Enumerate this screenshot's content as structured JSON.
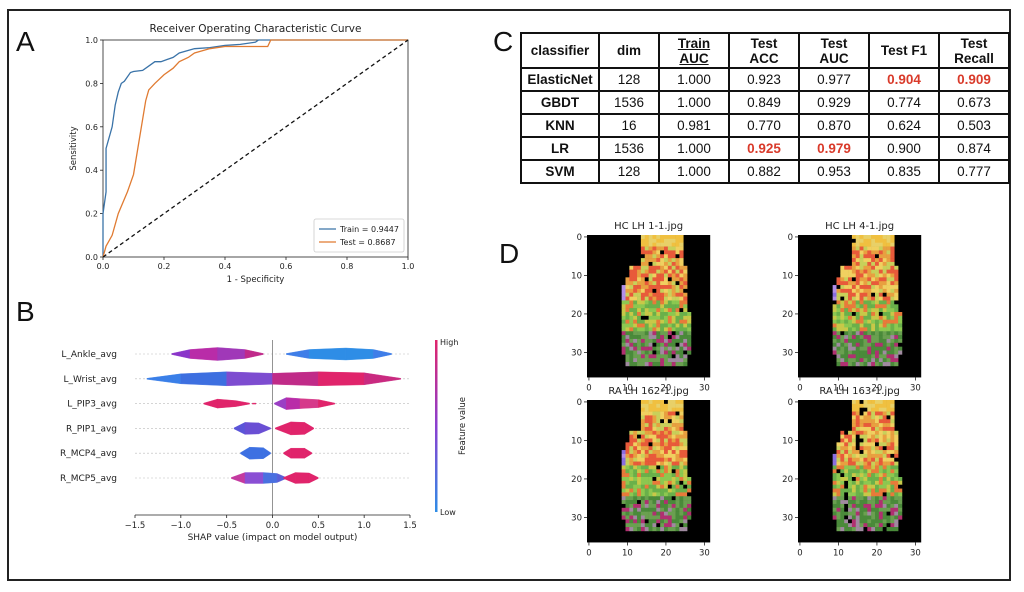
{
  "panel_labels": {
    "a": "A",
    "b": "B",
    "c": "C",
    "d": "D"
  },
  "colors": {
    "train": "#3a73a8",
    "test": "#e07b32",
    "highlight": "#d93a2a",
    "shap_high": "#e0246b",
    "shap_low": "#2e8de6"
  },
  "chart_data": [
    {
      "type": "line",
      "title": "Receiver Operating Characteristic Curve",
      "xlabel": "1 - Specificity",
      "ylabel": "Sensitivity",
      "xlim": [
        0,
        1
      ],
      "ylim": [
        0,
        1
      ],
      "xticks": [
        "0.0",
        "0.2",
        "0.4",
        "0.6",
        "0.8",
        "1.0"
      ],
      "yticks": [
        "0.0",
        "0.2",
        "0.4",
        "0.6",
        "0.8",
        "1.0"
      ],
      "legend_position": "lower-right",
      "series": [
        {
          "name": "Train = 0.9447",
          "color": "#3a73a8",
          "x": [
            0,
            0,
            0.01,
            0.01,
            0.03,
            0.04,
            0.05,
            0.06,
            0.07,
            0.08,
            0.09,
            0.1,
            0.13,
            0.15,
            0.17,
            0.19,
            0.21,
            0.23,
            0.25,
            0.3,
            0.35,
            0.4,
            0.45,
            0.5,
            0.51,
            0.52,
            0.53,
            0.54,
            0.6,
            1.0
          ],
          "y": [
            0,
            0.2,
            0.3,
            0.5,
            0.6,
            0.7,
            0.76,
            0.8,
            0.81,
            0.83,
            0.85,
            0.855,
            0.86,
            0.88,
            0.9,
            0.9,
            0.91,
            0.92,
            0.94,
            0.96,
            0.965,
            0.975,
            0.98,
            0.99,
            1.0,
            1.0,
            1.0,
            1.0,
            1.0,
            1.0
          ]
        },
        {
          "name": "Test = 0.8687",
          "color": "#e07b32",
          "x": [
            0,
            0.01,
            0.03,
            0.05,
            0.08,
            0.1,
            0.12,
            0.14,
            0.15,
            0.17,
            0.2,
            0.23,
            0.25,
            0.28,
            0.3,
            0.35,
            0.4,
            0.45,
            0.5,
            0.54,
            0.55,
            1.0
          ],
          "y": [
            0,
            0.05,
            0.1,
            0.2,
            0.3,
            0.38,
            0.55,
            0.72,
            0.77,
            0.8,
            0.84,
            0.87,
            0.9,
            0.92,
            0.94,
            0.96,
            0.97,
            0.97,
            0.97,
            0.97,
            1.0,
            1.0
          ]
        },
        {
          "name": "",
          "color": "#111111",
          "dashed": true,
          "x": [
            0,
            1
          ],
          "y": [
            0,
            1
          ]
        }
      ]
    },
    {
      "type": "violin",
      "xlabel": "SHAP value (impact on model output)",
      "xlim": [
        -1.5,
        1.5
      ],
      "xticks": [
        "−1.5",
        "−1.0",
        "−0.5",
        "0.0",
        "0.5",
        "1.0",
        "1.5"
      ],
      "colorbar": {
        "label": "Feature value",
        "high": "High",
        "low": "Low"
      },
      "features": [
        {
          "name": "L_Ankle_avg",
          "blobs": [
            {
              "x": [
                -1.1,
                -0.9,
                -0.6,
                -0.3,
                -0.1
              ],
              "w": [
                0.05,
                0.45,
                0.65,
                0.45,
                0.05
              ],
              "c": [
                "#8a35c9",
                "#b92ca8",
                "#a038b8",
                "#c02a8a"
              ]
            },
            {
              "x": [
                0.15,
                0.4,
                0.8,
                1.1,
                1.3
              ],
              "w": [
                0.05,
                0.45,
                0.6,
                0.45,
                0.05
              ],
              "c": [
                "#3f7ee8",
                "#2e8de6",
                "#2e8de6",
                "#3f7ee8"
              ]
            }
          ]
        },
        {
          "name": "L_Wrist_avg",
          "blobs": [
            {
              "x": [
                -1.37,
                -1.0,
                -0.5,
                0.0,
                0.5,
                1.0,
                1.4
              ],
              "w": [
                0.05,
                0.5,
                0.7,
                0.55,
                0.7,
                0.6,
                0.05
              ],
              "c": [
                "#3a7fe8",
                "#3d6fe0",
                "#7d4cd0",
                "#c02b88",
                "#e0246b",
                "#c92a80"
              ]
            }
          ]
        },
        {
          "name": "L_PIP3_avg",
          "blobs": [
            {
              "x": [
                -0.75,
                -0.6,
                -0.4,
                -0.25
              ],
              "w": [
                0.05,
                0.45,
                0.3,
                0.05
              ],
              "c": [
                "#e0246b",
                "#e0246b",
                "#e0246b"
              ]
            },
            {
              "x": [
                -0.22,
                -0.18
              ],
              "w": [
                0.05,
                0.05
              ],
              "c": [
                "#e0246b"
              ]
            },
            {
              "x": [
                0.02,
                0.15,
                0.3,
                0.5,
                0.68
              ],
              "w": [
                0.05,
                0.6,
                0.5,
                0.4,
                0.05
              ],
              "c": [
                "#9a3fc4",
                "#b92ca8",
                "#d63a8a",
                "#e0246b"
              ]
            }
          ]
        },
        {
          "name": "R_PIP1_avg",
          "blobs": [
            {
              "x": [
                -0.42,
                -0.3,
                -0.15,
                -0.02
              ],
              "w": [
                0.05,
                0.6,
                0.55,
                0.05
              ],
              "c": [
                "#5b55d8",
                "#6a4fd4",
                "#6a4fd4"
              ]
            },
            {
              "x": [
                0.03,
                0.2,
                0.35,
                0.45
              ],
              "w": [
                0.05,
                0.65,
                0.6,
                0.05
              ],
              "c": [
                "#e0246b",
                "#e0246b",
                "#e0246b"
              ]
            }
          ]
        },
        {
          "name": "R_MCP4_avg",
          "blobs": [
            {
              "x": [
                -0.35,
                -0.25,
                -0.1,
                -0.02
              ],
              "w": [
                0.05,
                0.6,
                0.55,
                0.05
              ],
              "c": [
                "#3d70e2",
                "#3d70e2",
                "#3d70e2"
              ]
            },
            {
              "x": [
                0.12,
                0.2,
                0.35,
                0.43
              ],
              "w": [
                0.05,
                0.5,
                0.5,
                0.05
              ],
              "c": [
                "#e0246b",
                "#e0246b",
                "#e0246b"
              ]
            }
          ]
        },
        {
          "name": "R_MCP5_avg",
          "blobs": [
            {
              "x": [
                -0.45,
                -0.3,
                -0.1,
                0.05,
                0.15
              ],
              "w": [
                0.05,
                0.55,
                0.55,
                0.45,
                0.05
              ],
              "c": [
                "#c43aa0",
                "#8a4fd4",
                "#4a70e0",
                "#5a60d8"
              ]
            },
            {
              "x": [
                0.12,
                0.25,
                0.4,
                0.5
              ],
              "w": [
                0.05,
                0.55,
                0.5,
                0.05
              ],
              "c": [
                "#e0246b",
                "#e0246b",
                "#e0246b"
              ]
            }
          ]
        }
      ]
    },
    {
      "type": "heatmap",
      "images": [
        {
          "title": "HC LH 1-1.jpg"
        },
        {
          "title": "HC LH 4-1.jpg"
        },
        {
          "title": "RA LH 162-1.jpg"
        },
        {
          "title": "RA LH 163-1.jpg"
        }
      ],
      "xticks": [
        "0",
        "10",
        "20",
        "30"
      ],
      "yticks": [
        "0",
        "10",
        "20",
        "30"
      ],
      "grid_size": [
        37,
        32
      ]
    }
  ],
  "table": {
    "headers": [
      "classifier",
      "dim",
      "Train AUC",
      "Test ACC",
      "Test AUC",
      "Test F1",
      "Test Recall"
    ],
    "header_lines": [
      [
        "classifier"
      ],
      [
        "dim"
      ],
      [
        "Train",
        "AUC"
      ],
      [
        "Test",
        "ACC"
      ],
      [
        "Test",
        "AUC"
      ],
      [
        "Test F1"
      ],
      [
        "Test",
        "Recall"
      ]
    ],
    "rows": [
      [
        "ElasticNet",
        "128",
        "1.000",
        "0.923",
        "0.977",
        "0.904",
        "0.909"
      ],
      [
        "GBDT",
        "1536",
        "1.000",
        "0.849",
        "0.929",
        "0.774",
        "0.673"
      ],
      [
        "KNN",
        "16",
        "0.981",
        "0.770",
        "0.870",
        "0.624",
        "0.503"
      ],
      [
        "LR",
        "1536",
        "1.000",
        "0.925",
        "0.979",
        "0.900",
        "0.874"
      ],
      [
        "SVM",
        "128",
        "1.000",
        "0.882",
        "0.953",
        "0.835",
        "0.777"
      ]
    ],
    "highlighted": [
      [
        0,
        5
      ],
      [
        0,
        6
      ],
      [
        3,
        3
      ],
      [
        3,
        4
      ]
    ]
  }
}
